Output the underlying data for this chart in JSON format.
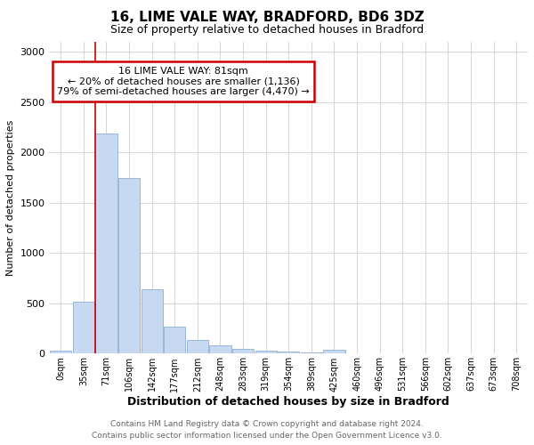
{
  "title": "16, LIME VALE WAY, BRADFORD, BD6 3DZ",
  "subtitle": "Size of property relative to detached houses in Bradford",
  "xlabel": "Distribution of detached houses by size in Bradford",
  "ylabel": "Number of detached properties",
  "footnote1": "Contains HM Land Registry data © Crown copyright and database right 2024.",
  "footnote2": "Contains public sector information licensed under the Open Government Licence v3.0.",
  "bar_labels": [
    "0sqm",
    "35sqm",
    "71sqm",
    "106sqm",
    "142sqm",
    "177sqm",
    "212sqm",
    "248sqm",
    "283sqm",
    "319sqm",
    "354sqm",
    "389sqm",
    "425sqm",
    "460sqm",
    "496sqm",
    "531sqm",
    "566sqm",
    "602sqm",
    "637sqm",
    "673sqm",
    "708sqm"
  ],
  "bar_values": [
    30,
    520,
    2190,
    1750,
    640,
    270,
    140,
    80,
    50,
    30,
    20,
    10,
    35,
    5,
    5,
    5,
    5,
    5,
    5,
    5,
    5
  ],
  "bar_color": "#c6d9f1",
  "bar_edge_color": "#9ab7d8",
  "ylim": [
    0,
    3100
  ],
  "yticks": [
    0,
    500,
    1000,
    1500,
    2000,
    2500,
    3000
  ],
  "property_label": "16 LIME VALE WAY: 81sqm",
  "annotation_line1": "← 20% of detached houses are smaller (1,136)",
  "annotation_line2": "79% of semi-detached houses are larger (4,470) →",
  "vline_x": 1.5,
  "background_color": "#ffffff",
  "grid_color": "#d0d0d0",
  "vline_color": "#cc0000",
  "annotation_box_color": "#ffffff",
  "annotation_box_edge_color": "#cc0000",
  "title_fontsize": 11,
  "subtitle_fontsize": 9
}
